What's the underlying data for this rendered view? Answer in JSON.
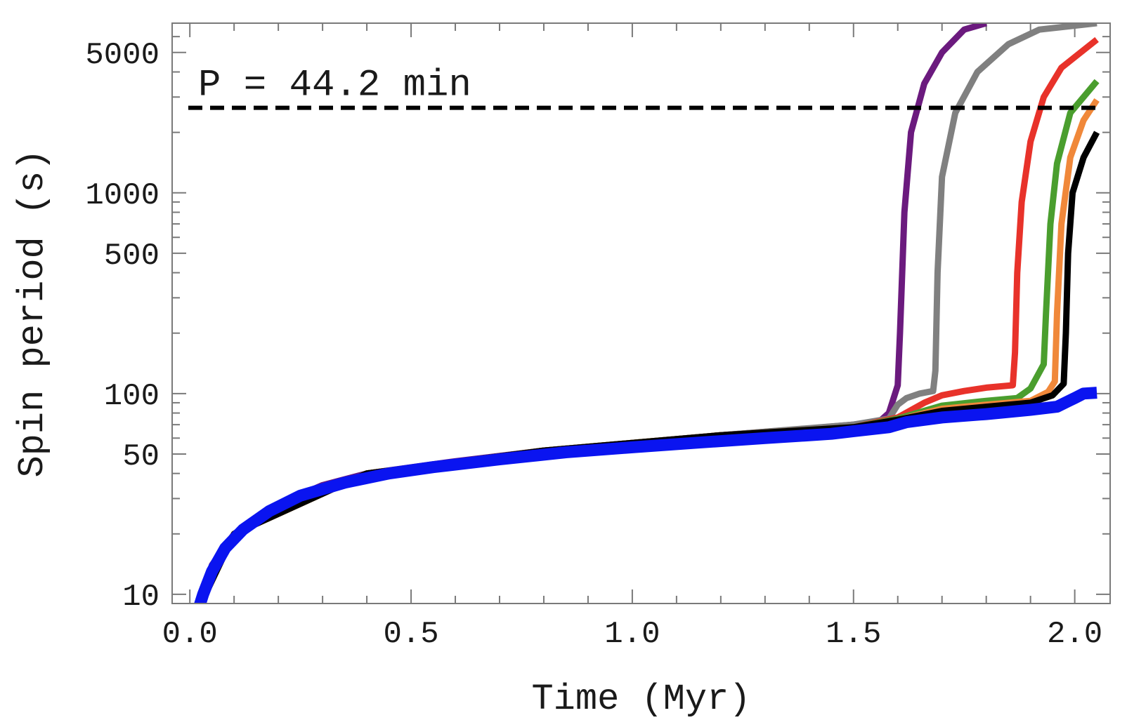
{
  "chart_data": {
    "type": "line",
    "xlabel": "Time (Myr)",
    "ylabel": "Spin period (s)",
    "xlim": [
      -0.04,
      2.08
    ],
    "ylim": [
      9,
      7000
    ],
    "yscale": "log",
    "grid": false,
    "x_ticks": [
      {
        "value": 0.0,
        "label": "0.0"
      },
      {
        "value": 0.5,
        "label": "0.5"
      },
      {
        "value": 1.0,
        "label": "1.0"
      },
      {
        "value": 1.5,
        "label": "1.5"
      },
      {
        "value": 2.0,
        "label": "2.0"
      }
    ],
    "y_ticks": [
      {
        "value": 10,
        "label": "10"
      },
      {
        "value": 50,
        "label": "50"
      },
      {
        "value": 100,
        "label": "100"
      },
      {
        "value": 500,
        "label": "500"
      },
      {
        "value": 1000,
        "label": "1000"
      },
      {
        "value": 5000,
        "label": "5000"
      }
    ],
    "reference_line": {
      "y": 2652,
      "label": "P = 44.2 min",
      "color": "#000000",
      "style": "dashed"
    },
    "series": [
      {
        "color": "#6b1a7e",
        "points": [
          [
            0.02,
            8.5
          ],
          [
            0.05,
            14
          ],
          [
            0.1,
            20
          ],
          [
            0.2,
            28
          ],
          [
            0.3,
            35
          ],
          [
            0.4,
            40
          ],
          [
            0.6,
            46
          ],
          [
            0.8,
            52
          ],
          [
            1.0,
            56
          ],
          [
            1.2,
            62
          ],
          [
            1.4,
            67
          ],
          [
            1.5,
            70
          ],
          [
            1.56,
            73
          ],
          [
            1.58,
            80
          ],
          [
            1.6,
            110
          ],
          [
            1.605,
            200
          ],
          [
            1.615,
            800
          ],
          [
            1.63,
            2000
          ],
          [
            1.66,
            3500
          ],
          [
            1.7,
            5000
          ],
          [
            1.75,
            6500
          ],
          [
            1.8,
            7000
          ]
        ]
      },
      {
        "color": "#808080",
        "points": [
          [
            0.02,
            8.5
          ],
          [
            0.1,
            20
          ],
          [
            0.4,
            40
          ],
          [
            0.8,
            52
          ],
          [
            1.2,
            62
          ],
          [
            1.5,
            70
          ],
          [
            1.58,
            75
          ],
          [
            1.6,
            88
          ],
          [
            1.62,
            95
          ],
          [
            1.65,
            100
          ],
          [
            1.68,
            103
          ],
          [
            1.685,
            130
          ],
          [
            1.69,
            400
          ],
          [
            1.7,
            1200
          ],
          [
            1.73,
            2500
          ],
          [
            1.78,
            4000
          ],
          [
            1.85,
            5500
          ],
          [
            1.92,
            6500
          ],
          [
            2.05,
            7000
          ]
        ]
      },
      {
        "color": "#e8322a",
        "points": [
          [
            0.02,
            8.5
          ],
          [
            0.1,
            20
          ],
          [
            0.4,
            40
          ],
          [
            0.8,
            52
          ],
          [
            1.2,
            62
          ],
          [
            1.5,
            68
          ],
          [
            1.6,
            76
          ],
          [
            1.66,
            90
          ],
          [
            1.7,
            98
          ],
          [
            1.75,
            103
          ],
          [
            1.8,
            107
          ],
          [
            1.86,
            110
          ],
          [
            1.865,
            160
          ],
          [
            1.87,
            400
          ],
          [
            1.88,
            900
          ],
          [
            1.9,
            1800
          ],
          [
            1.93,
            3000
          ],
          [
            1.97,
            4200
          ],
          [
            2.05,
            5800
          ]
        ]
      },
      {
        "color": "#4a9e2e",
        "points": [
          [
            0.02,
            8.5
          ],
          [
            0.1,
            20
          ],
          [
            0.4,
            40
          ],
          [
            0.8,
            52
          ],
          [
            1.2,
            62
          ],
          [
            1.5,
            68
          ],
          [
            1.6,
            75
          ],
          [
            1.66,
            82
          ],
          [
            1.7,
            87
          ],
          [
            1.8,
            92
          ],
          [
            1.87,
            95
          ],
          [
            1.9,
            106
          ],
          [
            1.93,
            140
          ],
          [
            1.935,
            250
          ],
          [
            1.945,
            700
          ],
          [
            1.96,
            1400
          ],
          [
            1.99,
            2500
          ],
          [
            2.05,
            3600
          ]
        ]
      },
      {
        "color": "#f0883a",
        "points": [
          [
            0.02,
            8.5
          ],
          [
            0.1,
            20
          ],
          [
            0.4,
            40
          ],
          [
            0.8,
            52
          ],
          [
            1.2,
            62
          ],
          [
            1.5,
            68
          ],
          [
            1.6,
            74
          ],
          [
            1.7,
            84
          ],
          [
            1.8,
            88
          ],
          [
            1.9,
            92
          ],
          [
            1.94,
            102
          ],
          [
            1.955,
            115
          ],
          [
            1.96,
            250
          ],
          [
            1.97,
            700
          ],
          [
            1.99,
            1500
          ],
          [
            2.02,
            2300
          ],
          [
            2.05,
            2900
          ]
        ]
      },
      {
        "color": "#000000",
        "points": [
          [
            0.02,
            8.5
          ],
          [
            0.1,
            20
          ],
          [
            0.4,
            40
          ],
          [
            0.8,
            52
          ],
          [
            1.2,
            62
          ],
          [
            1.5,
            68
          ],
          [
            1.6,
            74
          ],
          [
            1.7,
            82
          ],
          [
            1.8,
            86
          ],
          [
            1.9,
            90
          ],
          [
            1.95,
            98
          ],
          [
            1.975,
            112
          ],
          [
            1.98,
            200
          ],
          [
            1.985,
            500
          ],
          [
            1.995,
            1000
          ],
          [
            2.02,
            1500
          ],
          [
            2.05,
            2000
          ]
        ]
      },
      {
        "color": "#0a14f0",
        "points": [
          [
            0.02,
            8.5
          ],
          [
            0.03,
            10
          ],
          [
            0.05,
            13
          ],
          [
            0.08,
            17
          ],
          [
            0.12,
            21
          ],
          [
            0.18,
            26
          ],
          [
            0.25,
            31
          ],
          [
            0.35,
            36
          ],
          [
            0.45,
            40
          ],
          [
            0.55,
            43
          ],
          [
            0.7,
            47
          ],
          [
            0.85,
            51
          ],
          [
            1.0,
            54
          ],
          [
            1.15,
            57
          ],
          [
            1.3,
            60
          ],
          [
            1.45,
            63
          ],
          [
            1.5,
            65
          ],
          [
            1.58,
            68
          ],
          [
            1.62,
            72
          ],
          [
            1.7,
            76
          ],
          [
            1.8,
            79
          ],
          [
            1.9,
            83
          ],
          [
            1.96,
            86
          ],
          [
            2.0,
            95
          ],
          [
            2.02,
            100
          ],
          [
            2.05,
            101
          ]
        ]
      }
    ]
  }
}
